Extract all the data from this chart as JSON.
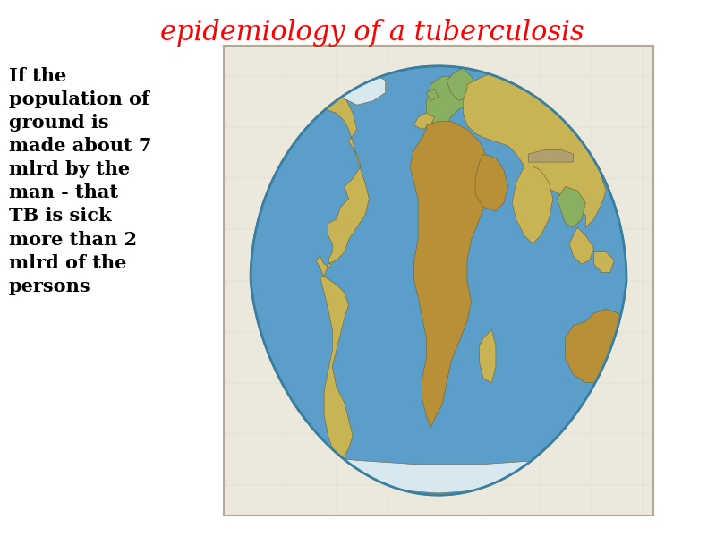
{
  "title": "epidemiology of a tuberculosis",
  "title_color": "#ff0000",
  "title_fontsize": 22,
  "body_text": "If the\npopulation of\nground is\nmade about 7\nmlrd by the\nman - that\nTB is sick\nmore than 2\nmlrd of the\npersons",
  "body_fontsize": 15,
  "body_color": "#000000",
  "background_color": "#ffffff",
  "ocean_color": "#5b9ec9",
  "land_color": "#c8b455",
  "map_panel_bg": "#ede8dc",
  "map_border_color": "#b0a898"
}
